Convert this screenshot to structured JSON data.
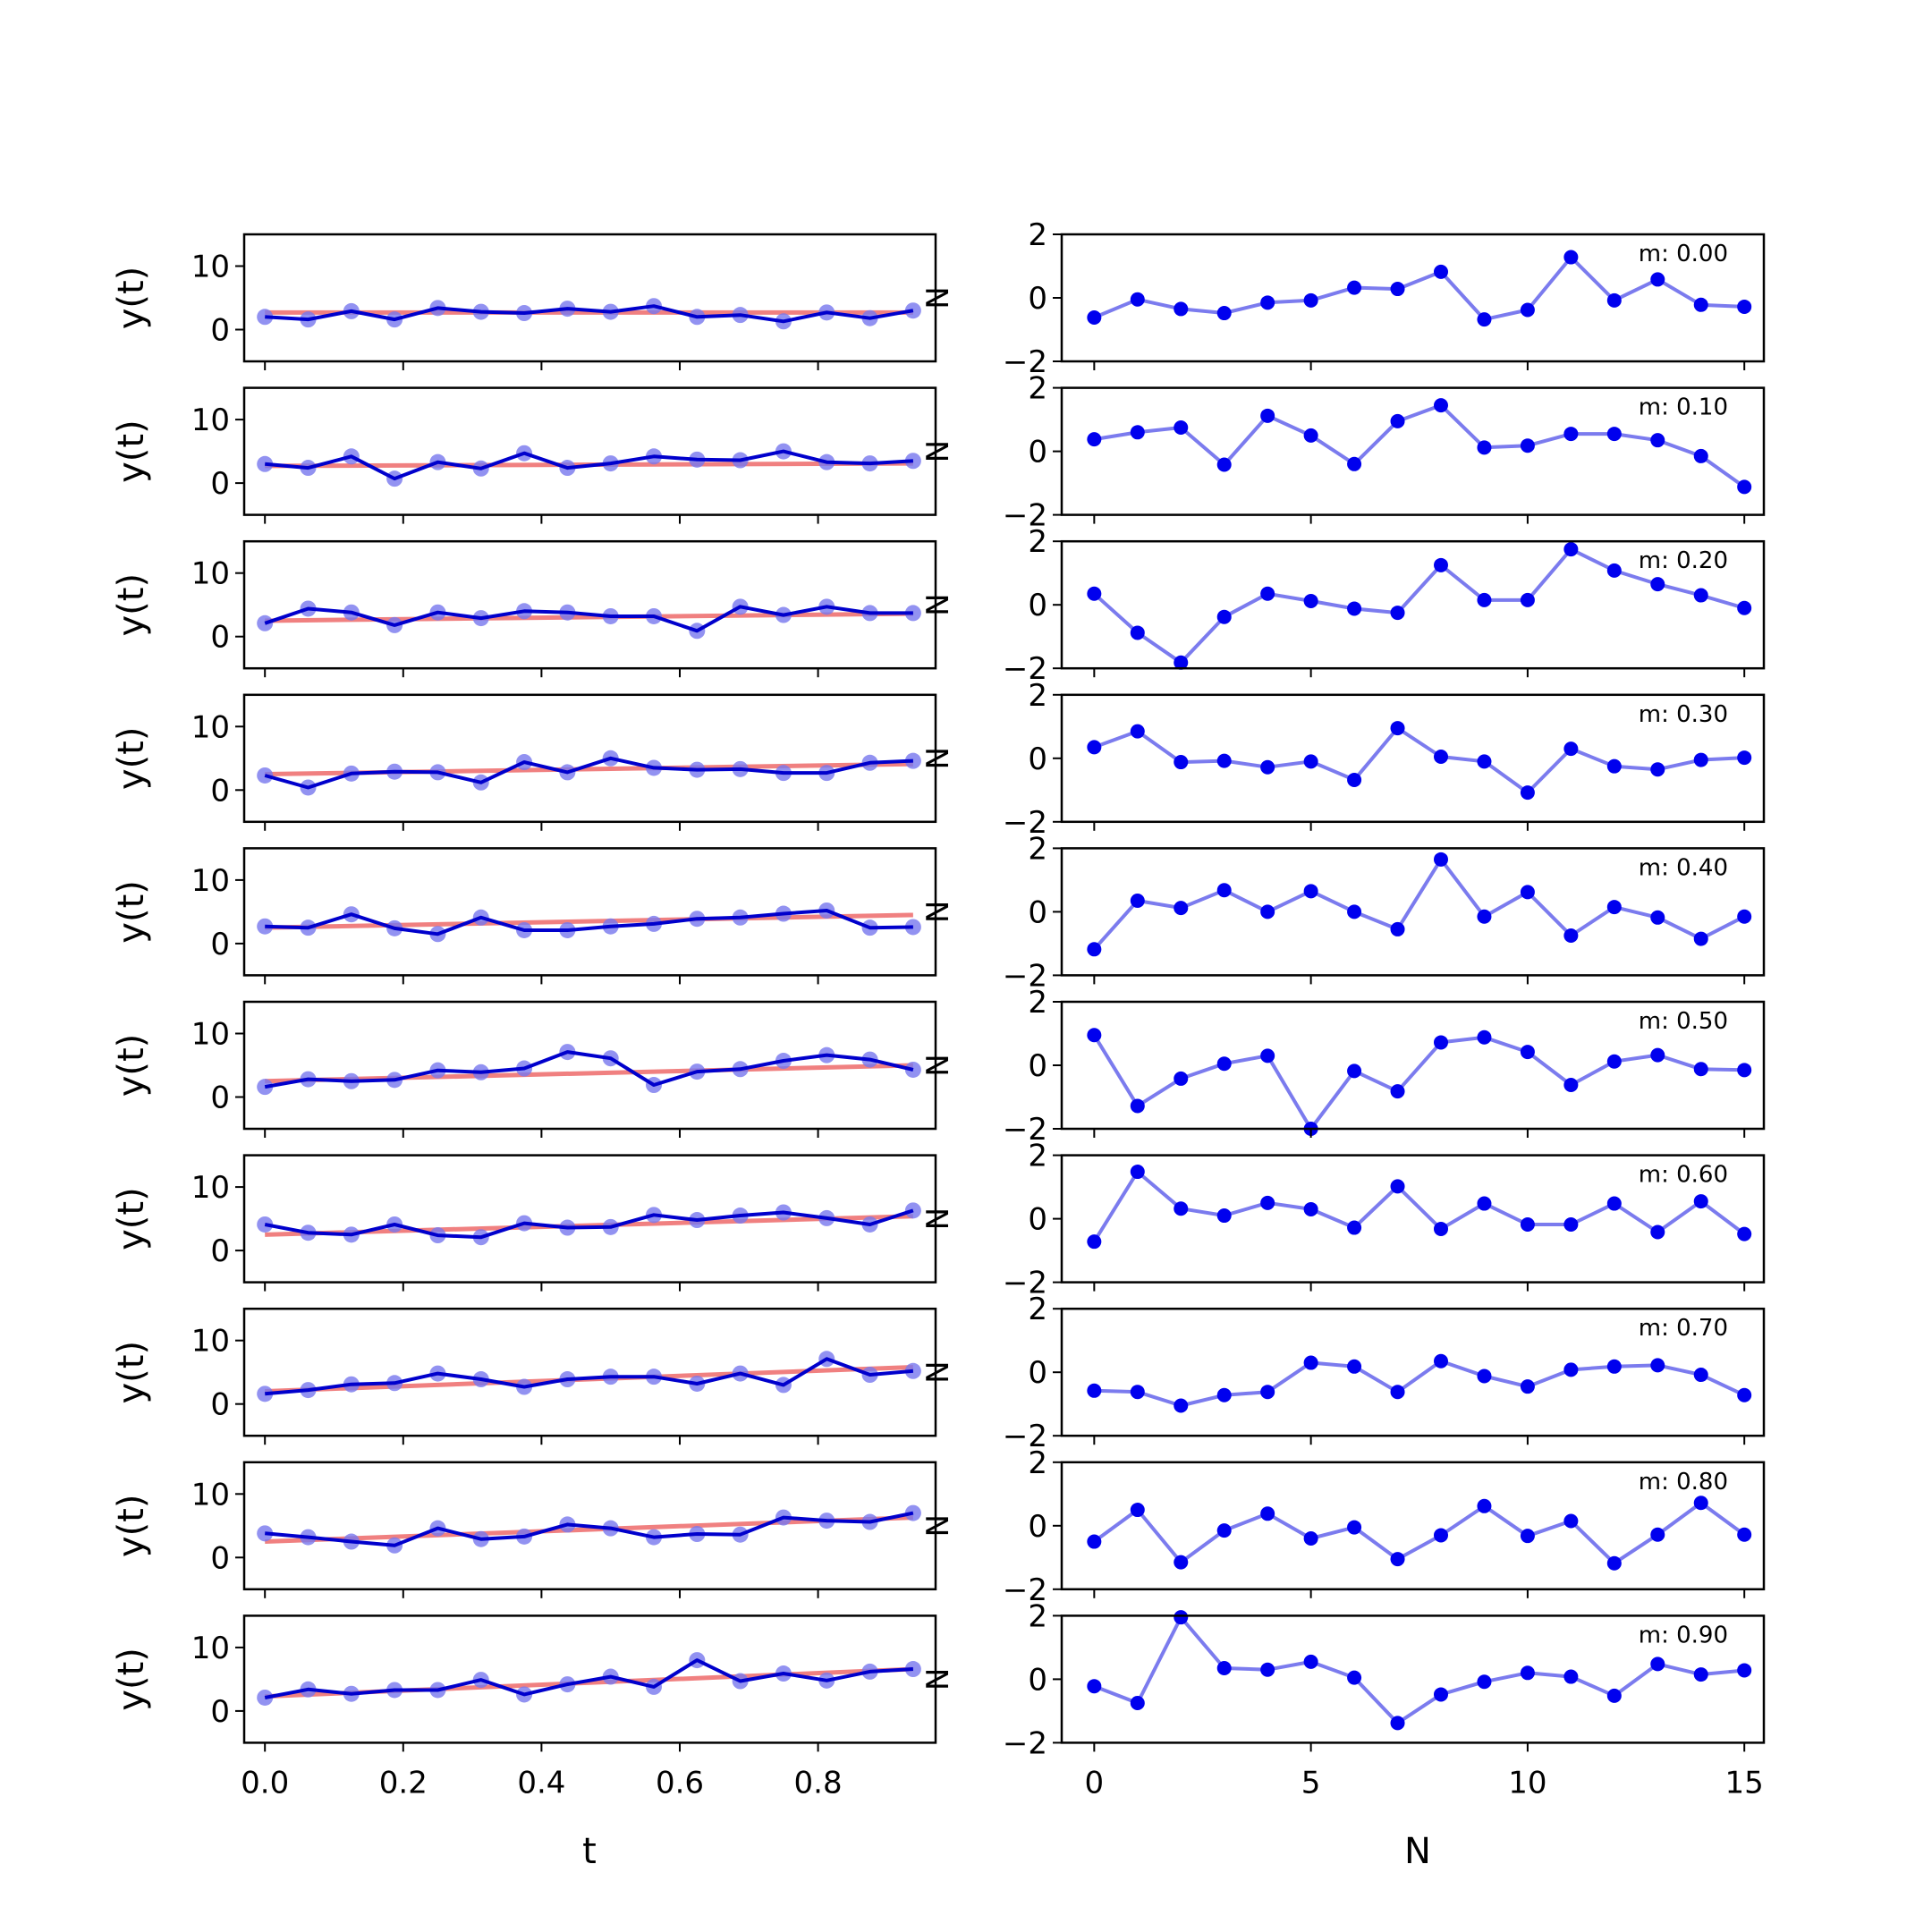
{
  "chart_data": {
    "type": "line",
    "left_column": {
      "xlabel": "t",
      "ylabel": "y(t)",
      "xlim": [
        -0.03,
        0.97
      ],
      "ylim": [
        -5,
        15
      ],
      "xticks": [
        0.0,
        0.2,
        0.4,
        0.6,
        0.8
      ],
      "xtick_labels": [
        "0.0",
        "0.2",
        "0.4",
        "0.6",
        "0.8"
      ],
      "yticks": [
        0,
        10
      ],
      "ytick_labels": [
        "0",
        "10"
      ],
      "side_label": "N",
      "colors": {
        "fit": "#f08080",
        "series": "#0000cc",
        "points": "#7777ee"
      },
      "x": [
        0.0,
        0.0625,
        0.125,
        0.1875,
        0.25,
        0.3125,
        0.375,
        0.4375,
        0.5,
        0.5625,
        0.625,
        0.6875,
        0.75,
        0.8125,
        0.875,
        0.9375
      ],
      "panels": [
        {
          "fit": [
            2.7,
            2.7
          ],
          "y": [
            2.0,
            1.6,
            2.9,
            1.6,
            3.4,
            2.8,
            2.6,
            3.3,
            2.8,
            3.7,
            2.0,
            2.3,
            1.3,
            2.7,
            1.8,
            3.0
          ]
        },
        {
          "fit": [
            2.7,
            3.1
          ],
          "y": [
            3.0,
            2.4,
            4.2,
            0.7,
            3.3,
            2.3,
            4.7,
            2.4,
            3.1,
            4.2,
            3.7,
            3.6,
            5.0,
            3.3,
            3.1,
            3.5
          ]
        },
        {
          "fit": [
            2.5,
            3.6
          ],
          "y": [
            2.1,
            4.4,
            3.8,
            1.8,
            3.8,
            2.9,
            4.0,
            3.8,
            3.2,
            3.2,
            0.9,
            4.7,
            3.4,
            4.7,
            3.7,
            3.7
          ]
        },
        {
          "fit": [
            2.5,
            4.1
          ],
          "y": [
            2.3,
            0.4,
            2.6,
            2.9,
            2.8,
            1.2,
            4.4,
            2.8,
            5.0,
            3.5,
            3.2,
            3.3,
            2.7,
            2.7,
            4.3,
            4.6
          ]
        },
        {
          "fit": [
            2.5,
            4.5
          ],
          "y": [
            2.7,
            2.5,
            4.6,
            2.4,
            1.5,
            4.1,
            2.1,
            2.1,
            2.7,
            3.1,
            3.9,
            4.1,
            4.7,
            5.2,
            2.5,
            2.6
          ]
        },
        {
          "fit": [
            2.5,
            5.0
          ],
          "y": [
            1.6,
            2.8,
            2.5,
            2.7,
            4.2,
            3.9,
            4.5,
            7.1,
            6.1,
            1.9,
            4.0,
            4.4,
            5.7,
            6.6,
            5.9,
            4.3
          ]
        },
        {
          "fit": [
            2.5,
            5.4
          ],
          "y": [
            4.1,
            2.8,
            2.5,
            4.1,
            2.4,
            2.1,
            4.3,
            3.6,
            3.7,
            5.6,
            4.8,
            5.5,
            6.0,
            5.1,
            4.1,
            6.3
          ]
        },
        {
          "fit": [
            2.0,
            5.8
          ],
          "y": [
            1.6,
            2.2,
            3.1,
            3.3,
            4.8,
            3.9,
            2.7,
            3.9,
            4.3,
            4.3,
            3.2,
            4.8,
            3.0,
            7.1,
            4.6,
            5.2
          ]
        },
        {
          "fit": [
            2.5,
            6.3
          ],
          "y": [
            3.8,
            3.2,
            2.5,
            1.9,
            4.6,
            2.9,
            3.3,
            5.2,
            4.6,
            3.2,
            3.7,
            3.6,
            6.3,
            5.8,
            5.6,
            7.0
          ]
        },
        {
          "fit": [
            2.3,
            6.6
          ],
          "y": [
            2.1,
            3.4,
            2.7,
            3.3,
            3.3,
            4.9,
            2.6,
            4.2,
            5.4,
            3.8,
            8.0,
            4.7,
            5.9,
            4.8,
            6.2,
            6.6
          ]
        }
      ]
    },
    "right_column": {
      "xlabel": "N",
      "xlim": [
        -0.75,
        15.45
      ],
      "ylim": [
        -2,
        2
      ],
      "xticks": [
        0,
        5,
        10,
        15
      ],
      "xtick_labels": [
        "0",
        "5",
        "10",
        "15"
      ],
      "yticks": [
        -2,
        0,
        2
      ],
      "ytick_labels": [
        "−2",
        "0",
        "2"
      ],
      "colors": {
        "line": "#7b7bee",
        "points": "#0000ee"
      },
      "x": [
        0,
        1,
        2,
        3,
        4,
        5,
        6,
        7,
        8,
        9,
        10,
        11,
        12,
        13,
        14,
        15
      ],
      "panels": [
        {
          "label": "m: 0.00",
          "y": [
            -0.62,
            -0.05,
            -0.35,
            -0.48,
            -0.15,
            -0.08,
            0.32,
            0.28,
            0.82,
            -0.68,
            -0.38,
            1.28,
            -0.08,
            0.58,
            -0.22,
            -0.28
          ]
        },
        {
          "label": "m: 0.10",
          "y": [
            0.38,
            0.6,
            0.75,
            -0.42,
            1.12,
            0.5,
            -0.4,
            0.95,
            1.45,
            0.12,
            0.18,
            0.55,
            0.55,
            0.35,
            -0.15,
            -1.12
          ]
        },
        {
          "label": "m: 0.20",
          "y": [
            0.35,
            -0.88,
            -1.82,
            -0.38,
            0.35,
            0.12,
            -0.12,
            -0.25,
            1.25,
            0.15,
            0.15,
            1.75,
            1.08,
            0.65,
            0.3,
            -0.1
          ]
        },
        {
          "label": "m: 0.30",
          "y": [
            0.35,
            0.85,
            -0.12,
            -0.08,
            -0.28,
            -0.1,
            -0.68,
            0.95,
            0.05,
            -0.1,
            -1.08,
            0.3,
            -0.25,
            -0.35,
            -0.05,
            0.02
          ]
        },
        {
          "label": "m: 0.40",
          "y": [
            -1.18,
            0.35,
            0.12,
            0.68,
            0.0,
            0.65,
            0.0,
            -0.55,
            1.65,
            -0.15,
            0.62,
            -0.75,
            0.15,
            -0.18,
            -0.85,
            -0.15
          ]
        },
        {
          "label": "m: 0.50",
          "y": [
            0.95,
            -1.28,
            -0.42,
            0.05,
            0.3,
            -2.0,
            -0.18,
            -0.82,
            0.72,
            0.88,
            0.42,
            -0.62,
            0.12,
            0.32,
            -0.12,
            -0.15
          ]
        },
        {
          "label": "m: 0.60",
          "y": [
            -0.72,
            1.48,
            0.32,
            0.1,
            0.5,
            0.3,
            -0.28,
            1.02,
            -0.32,
            0.48,
            -0.18,
            -0.18,
            0.48,
            -0.42,
            0.55,
            -0.48
          ]
        },
        {
          "label": "m: 0.70",
          "y": [
            -0.58,
            -0.62,
            -1.05,
            -0.72,
            -0.62,
            0.3,
            0.18,
            -0.62,
            0.35,
            -0.12,
            -0.45,
            0.08,
            0.18,
            0.22,
            -0.08,
            -0.72
          ]
        },
        {
          "label": "m: 0.80",
          "y": [
            -0.5,
            0.5,
            -1.15,
            -0.15,
            0.38,
            -0.4,
            -0.05,
            -1.05,
            -0.3,
            0.62,
            -0.32,
            0.15,
            -1.18,
            -0.28,
            0.72,
            -0.28
          ]
        },
        {
          "label": "m: 0.90",
          "y": [
            -0.22,
            -0.75,
            1.95,
            0.35,
            0.3,
            0.55,
            0.05,
            -1.38,
            -0.48,
            -0.08,
            0.2,
            0.08,
            -0.52,
            0.48,
            0.15,
            0.28
          ]
        }
      ]
    }
  }
}
